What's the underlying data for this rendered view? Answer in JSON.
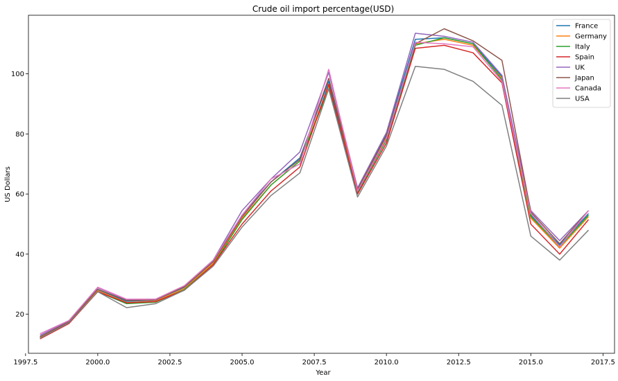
{
  "chart_data": {
    "type": "line",
    "title": "Crude oil import percentage(USD)",
    "xlabel": "Year",
    "ylabel": "US Dollars",
    "xlim": [
      1997.6,
      2017.9
    ],
    "ylim": [
      7,
      119.5
    ],
    "xticks": [
      1997.5,
      2000.0,
      2002.5,
      2005.0,
      2007.5,
      2010.0,
      2012.5,
      2015.0,
      2017.5
    ],
    "xtick_labels": [
      "1997.5",
      "2000.0",
      "2002.5",
      "2005.0",
      "2007.5",
      "2010.0",
      "2012.5",
      "2015.0",
      "2017.5"
    ],
    "yticks": [
      20,
      40,
      60,
      80,
      100
    ],
    "ytick_labels": [
      "20",
      "40",
      "60",
      "80",
      "100"
    ],
    "legend_position": "top-right",
    "grid": false,
    "x": [
      1998,
      1999,
      2000,
      2001,
      2002,
      2003,
      2004,
      2005,
      2006,
      2007,
      2008,
      2009,
      2010,
      2011,
      2012,
      2013,
      2014,
      2015,
      2016,
      2017
    ],
    "series": [
      {
        "name": "France",
        "color": "#1f77b4",
        "values": [
          12.5,
          17.5,
          28.2,
          24.3,
          24.7,
          29.0,
          37.5,
          53.0,
          64.0,
          72.0,
          97.5,
          61.5,
          80.0,
          111.5,
          112.0,
          110.0,
          99.0,
          53.0,
          43.0,
          53.5
        ]
      },
      {
        "name": "Germany",
        "color": "#ff7f0e",
        "values": [
          12.3,
          17.3,
          27.8,
          23.9,
          24.3,
          28.6,
          37.0,
          52.0,
          63.0,
          71.0,
          96.0,
          61.0,
          79.0,
          110.0,
          111.5,
          109.5,
          98.5,
          52.0,
          42.0,
          52.5
        ]
      },
      {
        "name": "Italy",
        "color": "#2ca02c",
        "values": [
          12.0,
          17.0,
          27.5,
          23.5,
          24.0,
          28.2,
          36.5,
          51.5,
          63.0,
          71.0,
          95.0,
          60.5,
          78.0,
          109.5,
          112.0,
          110.0,
          98.0,
          52.5,
          42.5,
          53.0
        ]
      },
      {
        "name": "Spain",
        "color": "#d62728",
        "values": [
          11.8,
          16.9,
          27.5,
          23.8,
          24.2,
          28.0,
          36.5,
          50.0,
          61.0,
          69.0,
          96.5,
          60.0,
          77.0,
          108.5,
          109.5,
          107.0,
          97.0,
          50.0,
          40.0,
          51.5
        ]
      },
      {
        "name": "UK",
        "color": "#9467bd",
        "values": [
          13.0,
          17.8,
          28.8,
          24.9,
          25.0,
          29.4,
          38.0,
          54.5,
          65.0,
          74.0,
          100.5,
          62.0,
          80.5,
          113.5,
          112.5,
          110.5,
          99.5,
          54.5,
          44.5,
          54.5
        ]
      },
      {
        "name": "Japan",
        "color": "#8c564b",
        "values": [
          12.5,
          17.5,
          28.3,
          24.6,
          24.7,
          29.2,
          37.5,
          52.5,
          64.0,
          71.5,
          98.5,
          61.5,
          79.5,
          110.0,
          115.0,
          111.0,
          104.5,
          54.0,
          43.5,
          54.5
        ]
      },
      {
        "name": "Canada",
        "color": "#e377c2",
        "values": [
          13.5,
          17.9,
          29.0,
          25.0,
          25.0,
          29.5,
          38.0,
          53.0,
          65.0,
          70.0,
          101.5,
          61.0,
          78.5,
          110.5,
          110.0,
          109.0,
          97.5,
          53.5,
          42.5,
          54.5
        ]
      },
      {
        "name": "USA",
        "color": "#7f7f7f",
        "values": [
          12.0,
          17.2,
          27.5,
          22.2,
          23.5,
          28.0,
          36.0,
          49.0,
          59.5,
          67.0,
          95.0,
          59.0,
          76.0,
          102.5,
          101.5,
          97.5,
          89.5,
          46.0,
          38.0,
          48.0
        ]
      }
    ]
  }
}
